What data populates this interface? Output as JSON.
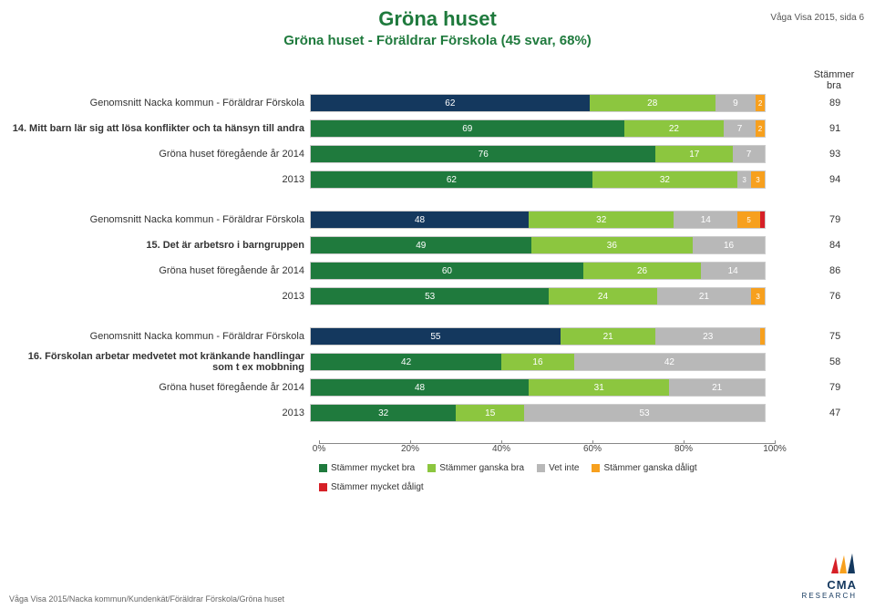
{
  "header_right": "Våga Visa 2015, sida 6",
  "title": "Gröna huset",
  "title_color": "#1f7a3d",
  "subtitle": "Gröna huset - Föräldrar Förskola (45 svar, 68%)",
  "subtitle_color": "#1f7a3d",
  "stammer_bra_label": "Stämmer bra",
  "colors": {
    "c1": "#1f7a3d",
    "c2": "#8cc63f",
    "c3": "#b8b8b8",
    "c4": "#f7a01e",
    "c5": "#d62027",
    "nacka": "#14385e"
  },
  "legend": [
    {
      "label": "Stämmer mycket bra",
      "colorKey": "c1"
    },
    {
      "label": "Stämmer ganska bra",
      "colorKey": "c2"
    },
    {
      "label": "Vet inte",
      "colorKey": "c3"
    },
    {
      "label": "Stämmer ganska dåligt",
      "colorKey": "c4"
    },
    {
      "label": "Stämmer mycket dåligt",
      "colorKey": "c5"
    }
  ],
  "axis_ticks": [
    "0%",
    "20%",
    "40%",
    "60%",
    "80%",
    "100%"
  ],
  "groups": [
    {
      "rows": [
        {
          "label": "Genomsnitt Nacka kommun - Föräldrar Förskola",
          "segs": [
            62,
            28,
            9,
            2,
            0
          ],
          "firstColorKey": "nacka",
          "score": 89,
          "bold": false
        },
        {
          "label": "14. Mitt barn lär sig att lösa konflikter och ta hänsyn till andra",
          "segs": [
            69,
            22,
            7,
            2,
            0
          ],
          "firstColorKey": "c1",
          "score": 91,
          "bold": true
        },
        {
          "label": "Gröna huset föregående år 2014",
          "segs": [
            76,
            17,
            7,
            0,
            0
          ],
          "firstColorKey": "c1",
          "score": 93,
          "bold": false
        },
        {
          "label": "2013",
          "segs": [
            62,
            32,
            3,
            3,
            0
          ],
          "firstColorKey": "c1",
          "score": 94,
          "bold": false
        }
      ]
    },
    {
      "rows": [
        {
          "label": "Genomsnitt Nacka kommun - Föräldrar Förskola",
          "segs": [
            48,
            32,
            14,
            5,
            1
          ],
          "firstColorKey": "nacka",
          "score": 79,
          "bold": false
        },
        {
          "label": "15. Det är arbetsro i barngruppen",
          "segs": [
            49,
            36,
            16,
            0,
            0
          ],
          "firstColorKey": "c1",
          "score": 84,
          "bold": true
        },
        {
          "label": "Gröna huset föregående år 2014",
          "segs": [
            60,
            26,
            14,
            0,
            0
          ],
          "firstColorKey": "c1",
          "score": 86,
          "bold": false
        },
        {
          "label": "2013",
          "segs": [
            53,
            24,
            21,
            3,
            0
          ],
          "firstColorKey": "c1",
          "score": 76,
          "bold": false
        }
      ]
    },
    {
      "rows": [
        {
          "label": "Genomsnitt Nacka kommun - Föräldrar Förskola",
          "segs": [
            55,
            21,
            23,
            1,
            0
          ],
          "firstColorKey": "nacka",
          "score": 75,
          "bold": false
        },
        {
          "label": "16. Förskolan arbetar medvetet mot kränkande handlingar som t ex mobbning",
          "segs": [
            42,
            16,
            42,
            0,
            0
          ],
          "firstColorKey": "c1",
          "score": 58,
          "bold": true
        },
        {
          "label": "Gröna huset föregående år 2014",
          "segs": [
            48,
            31,
            21,
            0,
            0
          ],
          "firstColorKey": "c1",
          "score": 79,
          "bold": false
        },
        {
          "label": "2013",
          "segs": [
            32,
            15,
            53,
            0,
            0
          ],
          "firstColorKey": "c1",
          "score": 47,
          "bold": false
        }
      ]
    }
  ],
  "footer": "Våga Visa 2015/Nacka kommun/Kundenkät/Föräldrar Förskola/Gröna huset",
  "logo": {
    "text": "CMA",
    "sub": "RESEARCH",
    "sail_colors": [
      "#d62027",
      "#f7a01e",
      "#14385e"
    ]
  }
}
